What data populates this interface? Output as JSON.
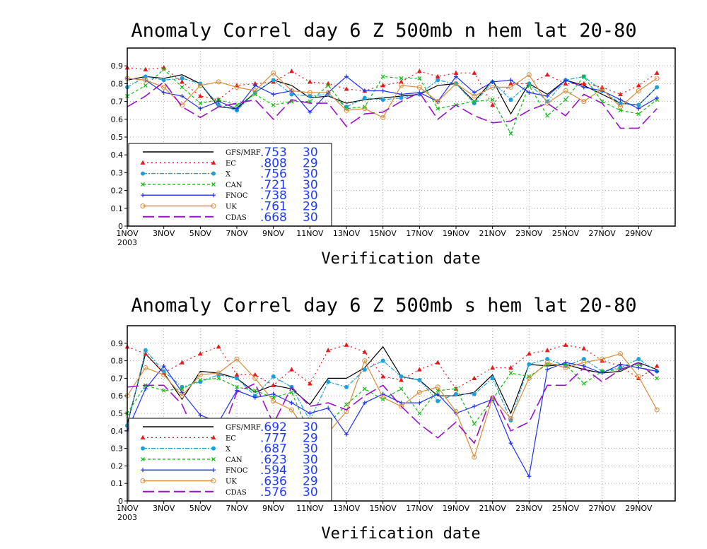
{
  "chart_data": [
    {
      "type": "line",
      "title": "Anomaly Correl  day 6  Z 500mb  n hem  lat 20-80",
      "xlabel": "Verification date",
      "ylabel": "",
      "ylim": [
        0,
        1
      ],
      "yticks": [
        "0",
        "0.1",
        "0.2",
        "0.3",
        "0.4",
        "0.5",
        "0.6",
        "0.7",
        "0.8",
        "0.9"
      ],
      "xlim": [
        1,
        31
      ],
      "xticks": [
        {
          "x": 1,
          "label": "1NOV",
          "sub": "2003"
        },
        {
          "x": 3,
          "label": "3NOV"
        },
        {
          "x": 5,
          "label": "5NOV"
        },
        {
          "x": 7,
          "label": "7NOV"
        },
        {
          "x": 9,
          "label": "9NOV"
        },
        {
          "x": 11,
          "label": "11NOV"
        },
        {
          "x": 13,
          "label": "13NOV"
        },
        {
          "x": 15,
          "label": "15NOV"
        },
        {
          "x": 17,
          "label": "17NOV"
        },
        {
          "x": 19,
          "label": "19NOV"
        },
        {
          "x": 21,
          "label": "21NOV"
        },
        {
          "x": 23,
          "label": "23NOV"
        },
        {
          "x": 25,
          "label": "25NOV"
        },
        {
          "x": 27,
          "label": "27NOV"
        },
        {
          "x": 29,
          "label": "29NOV"
        }
      ],
      "grid": true,
      "legend_position": "lower-left",
      "series": [
        {
          "name": "GFS/MRF",
          "score": ".753",
          "count": "30",
          "color": "#000000",
          "dash": "",
          "marker": "none",
          "values": [
            0.82,
            0.84,
            0.83,
            0.85,
            0.8,
            0.67,
            0.66,
            0.75,
            0.82,
            0.79,
            0.72,
            0.73,
            0.69,
            0.71,
            0.72,
            0.73,
            0.74,
            0.79,
            0.8,
            0.7,
            0.82,
            0.63,
            0.8,
            0.74,
            0.82,
            0.79,
            0.74,
            0.69,
            0.68,
            0.78
          ]
        },
        {
          "name": "EC",
          "score": ".808",
          "count": "29",
          "color": "#e41a1c",
          "dash": "2,4",
          "marker": "triangle",
          "values": [
            0.89,
            0.88,
            0.89,
            0.81,
            0.73,
            0.71,
            0.79,
            0.8,
            0.81,
            0.87,
            0.81,
            0.8,
            0.77,
            0.76,
            0.79,
            0.81,
            0.87,
            0.84,
            0.86,
            0.86,
            0.68,
            0.8,
            0.8,
            0.85,
            0.8,
            0.8,
            0.78,
            0.74,
            0.79,
            0.86
          ]
        },
        {
          "name": "X",
          "score": ".756",
          "count": "30",
          "color": "#1ea0dc",
          "dash": "6,2,2,2",
          "marker": "circle",
          "values": [
            0.78,
            0.84,
            0.82,
            0.83,
            0.8,
            0.68,
            0.65,
            0.75,
            0.82,
            0.74,
            0.73,
            0.74,
            0.67,
            0.72,
            0.71,
            0.72,
            0.74,
            0.82,
            0.8,
            0.69,
            0.81,
            0.71,
            0.8,
            0.7,
            0.82,
            0.84,
            0.76,
            0.69,
            0.68,
            0.78
          ]
        },
        {
          "name": "CAN",
          "score": ".721",
          "count": "30",
          "color": "#11bb11",
          "dash": "4,3",
          "marker": "x",
          "values": [
            0.73,
            0.79,
            0.88,
            0.78,
            0.69,
            0.71,
            0.68,
            0.74,
            0.68,
            0.7,
            0.7,
            0.79,
            0.66,
            0.67,
            0.84,
            0.83,
            0.83,
            0.66,
            0.68,
            0.7,
            0.71,
            0.52,
            0.79,
            0.62,
            0.71,
            0.84,
            0.7,
            0.65,
            0.63,
            0.71
          ]
        },
        {
          "name": "FNOC",
          "score": ".738",
          "count": "30",
          "color": "#2233ee",
          "dash": "",
          "marker": "plus",
          "values": [
            0.83,
            0.82,
            0.75,
            0.73,
            0.66,
            0.7,
            0.66,
            0.79,
            0.74,
            0.76,
            0.64,
            0.75,
            0.84,
            0.76,
            0.76,
            0.74,
            0.75,
            0.7,
            0.84,
            0.75,
            0.81,
            0.82,
            0.75,
            0.73,
            0.82,
            0.78,
            0.76,
            0.71,
            0.66,
            0.72
          ]
        },
        {
          "name": "UK",
          "score": ".761",
          "count": "29",
          "color": "#d98c3a",
          "dash": "",
          "marker": "circle-open",
          "values": [
            0.83,
            0.82,
            0.78,
            0.68,
            0.79,
            0.81,
            0.78,
            0.76,
            0.86,
            0.76,
            0.75,
            0.75,
            0.65,
            0.66,
            0.61,
            0.79,
            0.78,
            0.7,
            0.8,
            0.73,
            0.78,
            0.78,
            0.85,
            0.69,
            0.76,
            0.7,
            0.77,
            0.67,
            0.76,
            0.83
          ]
        },
        {
          "name": "CDAS",
          "score": ".668",
          "count": "30",
          "color": "#9b12c9",
          "dash": "16,6",
          "marker": "none",
          "values": [
            0.67,
            0.73,
            0.81,
            0.67,
            0.61,
            0.67,
            0.69,
            0.71,
            0.6,
            0.71,
            0.69,
            0.69,
            0.56,
            0.63,
            0.64,
            0.7,
            0.75,
            0.6,
            0.68,
            0.62,
            0.58,
            0.59,
            0.65,
            0.69,
            0.62,
            0.74,
            0.69,
            0.55,
            0.55,
            0.66
          ]
        }
      ]
    },
    {
      "type": "line",
      "title": "Anomaly Correl  day 6  Z 500mb  s hem  lat 20-80",
      "xlabel": "Verification date",
      "ylabel": "",
      "ylim": [
        0,
        1
      ],
      "yticks": [
        "0",
        "0.1",
        "0.2",
        "0.3",
        "0.4",
        "0.5",
        "0.6",
        "0.7",
        "0.8",
        "0.9"
      ],
      "xlim": [
        1,
        31
      ],
      "xticks": [
        {
          "x": 1,
          "label": "1NOV",
          "sub": "2003"
        },
        {
          "x": 3,
          "label": "3NOV"
        },
        {
          "x": 5,
          "label": "5NOV"
        },
        {
          "x": 7,
          "label": "7NOV"
        },
        {
          "x": 9,
          "label": "9NOV"
        },
        {
          "x": 11,
          "label": "11NOV"
        },
        {
          "x": 13,
          "label": "13NOV"
        },
        {
          "x": 15,
          "label": "15NOV"
        },
        {
          "x": 17,
          "label": "17NOV"
        },
        {
          "x": 19,
          "label": "19NOV"
        },
        {
          "x": 21,
          "label": "21NOV"
        },
        {
          "x": 23,
          "label": "23NOV"
        },
        {
          "x": 25,
          "label": "25NOV"
        },
        {
          "x": 27,
          "label": "27NOV"
        },
        {
          "x": 29,
          "label": "29NOV"
        }
      ],
      "grid": true,
      "legend_position": "lower-left",
      "series": [
        {
          "name": "GFS/MRF",
          "score": ".692",
          "count": "30",
          "color": "#000000",
          "dash": "",
          "marker": "none",
          "values": [
            0.44,
            0.84,
            0.73,
            0.58,
            0.74,
            0.73,
            0.7,
            0.62,
            0.66,
            0.64,
            0.55,
            0.7,
            0.7,
            0.76,
            0.88,
            0.71,
            0.69,
            0.6,
            0.6,
            0.62,
            0.72,
            0.5,
            0.78,
            0.77,
            0.78,
            0.75,
            0.73,
            0.74,
            0.79,
            0.75
          ]
        },
        {
          "name": "EC",
          "score": ".777",
          "count": "29",
          "color": "#e41a1c",
          "dash": "2,4",
          "marker": "triangle",
          "values": [
            0.88,
            0.84,
            0.73,
            0.79,
            0.84,
            0.88,
            0.72,
            0.72,
            0.66,
            0.75,
            0.67,
            0.86,
            0.89,
            0.85,
            0.71,
            0.69,
            0.75,
            0.79,
            0.64,
            0.7,
            0.76,
            0.76,
            0.84,
            0.86,
            0.89,
            0.87,
            0.8,
            0.77,
            0.7,
            0.77
          ]
        },
        {
          "name": "X",
          "score": ".687",
          "count": "30",
          "color": "#1ea0dc",
          "dash": "6,2,2,2",
          "marker": "circle",
          "values": [
            0.43,
            0.86,
            0.74,
            0.65,
            0.68,
            0.72,
            0.7,
            0.6,
            0.71,
            0.65,
            0.46,
            0.68,
            0.65,
            0.75,
            0.8,
            0.71,
            0.69,
            0.57,
            0.61,
            0.61,
            0.7,
            0.46,
            0.78,
            0.81,
            0.77,
            0.81,
            0.74,
            0.76,
            0.81,
            0.74
          ]
        },
        {
          "name": "CAN",
          "score": ".623",
          "count": "30",
          "color": "#11bb11",
          "dash": "4,3",
          "marker": "x",
          "values": [
            0.5,
            0.66,
            0.63,
            0.64,
            0.69,
            0.7,
            0.65,
            0.63,
            0.59,
            0.62,
            0.38,
            0.44,
            0.55,
            0.64,
            0.58,
            0.64,
            0.5,
            0.63,
            0.64,
            0.44,
            0.58,
            0.73,
            0.71,
            0.78,
            0.78,
            0.67,
            0.74,
            0.75,
            0.78,
            0.7
          ]
        },
        {
          "name": "FNOC",
          "score": ".594",
          "count": "30",
          "color": "#2233ee",
          "dash": "",
          "marker": "plus",
          "values": [
            0.4,
            0.64,
            0.77,
            0.62,
            0.49,
            0.45,
            0.63,
            0.59,
            0.61,
            0.56,
            0.5,
            0.53,
            0.38,
            0.56,
            0.61,
            0.56,
            0.56,
            0.61,
            0.5,
            0.54,
            0.58,
            0.33,
            0.14,
            0.75,
            0.79,
            0.77,
            0.73,
            0.78,
            0.76,
            0.74
          ]
        },
        {
          "name": "UK",
          "score": ".636",
          "count": "29",
          "color": "#d98c3a",
          "dash": "",
          "marker": "circle-open",
          "values": [
            0.6,
            0.76,
            0.72,
            0.6,
            0.72,
            0.73,
            0.81,
            0.7,
            0.57,
            0.52,
            0.37,
            0.39,
            0.51,
            0.8,
            0.59,
            0.54,
            0.62,
            0.65,
            0.51,
            0.25,
            0.59,
            0.47,
            0.7,
            0.79,
            0.76,
            0.79,
            0.81,
            0.84,
            0.71,
            0.52
          ]
        },
        {
          "name": "CDAS",
          "score": ".576",
          "count": "30",
          "color": "#9b12c9",
          "dash": "16,6",
          "marker": "none",
          "values": [
            0.65,
            0.66,
            0.66,
            0.55,
            0.32,
            0.34,
            0.62,
            0.67,
            0.44,
            0.65,
            0.54,
            0.56,
            0.52,
            0.6,
            0.66,
            0.54,
            0.44,
            0.36,
            0.45,
            0.33,
            0.61,
            0.4,
            0.45,
            0.66,
            0.66,
            0.76,
            0.68,
            0.75,
            0.79,
            0.7
          ]
        }
      ]
    }
  ]
}
